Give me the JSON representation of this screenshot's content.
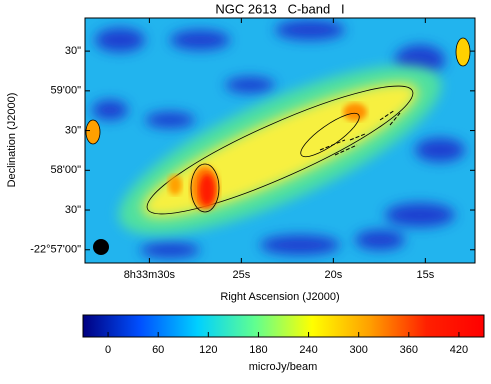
{
  "chart_data": {
    "type": "image",
    "title": "NGC 2613   C-band   I",
    "xlabel": "Right Ascension (J2000)",
    "ylabel": "Declination (J2000)",
    "xlim": [
      33.5,
      12.3
    ],
    "xticks": [
      {
        "value": 30,
        "label": "8h33m30s"
      },
      {
        "value": 25,
        "label": "25s"
      },
      {
        "value": 20,
        "label": "20s"
      },
      {
        "value": 15,
        "label": "15s"
      }
    ],
    "ylim": [
      -82610,
      -82795
    ],
    "yticks": [
      {
        "value": -82620,
        "label": "-22°57'00\""
      },
      {
        "value": -82650,
        "label": "30\""
      },
      {
        "value": -82680,
        "label": "58'00\""
      },
      {
        "value": -82710,
        "label": "30\""
      },
      {
        "value": -82740,
        "label": "59'00\""
      },
      {
        "value": -82770,
        "label": "30\""
      }
    ],
    "colorbar": {
      "label": "microJy/beam",
      "clim": [
        -30,
        450
      ],
      "ticks": [
        0,
        60,
        120,
        180,
        240,
        300,
        360,
        420
      ],
      "colors": [
        "#000080",
        "#0050ff",
        "#00d0ff",
        "#60ff90",
        "#ffff00",
        "#ffa000",
        "#ff2000",
        "#ff0000"
      ]
    }
  }
}
